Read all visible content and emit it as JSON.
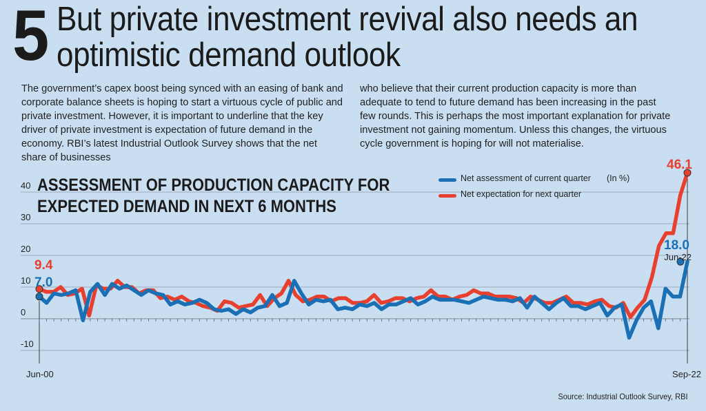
{
  "section_number": "5",
  "headline": {
    "line1": "But private investment revival also needs an",
    "line2": "optimistic demand outlook"
  },
  "body": {
    "column1": "The government’s capex boost being synced with an easing of bank and corporate balance sheets is hoping to start a virtuous cycle of public and private investment. However, it is important to underline that the key driver of private investment is expectation of future demand in the economy. RBI’s latest Industrial Outlook Survey shows that the net share of businesses",
    "column2": "who believe that their current production capacity is more than adequate to tend to future demand has been increasing in the past few rounds. This is perhaps the most important explanation for private investment not gaining momentum. Unless this changes, the virtuous cycle government is hoping for will not materialise."
  },
  "source": "Source: Industrial Outlook Survey, RBI",
  "colors": {
    "current": "#1a6fb5",
    "expectation": "#e8402e",
    "background": "#c9def1",
    "grid": "#8a9aa6"
  },
  "chart_data": {
    "type": "line",
    "title_line1": "ASSESSMENT OF PRODUCTION CAPACITY FOR",
    "title_line2": "EXPECTED DEMAND IN NEXT 6 MONTHS",
    "unit": "(In %)",
    "x_start_label": "Jun-00",
    "x_end_label": "Sep-22",
    "ylim": [
      -10,
      45
    ],
    "yticks": [
      -10,
      0,
      10,
      20,
      30,
      40
    ],
    "series": [
      {
        "name": "Net assessment of current quarter",
        "color": "#1a6fb5",
        "start_value": 7.0,
        "end_value": 18.0,
        "start_label": "7.0",
        "end_label": "18.0",
        "end_date_label": "Jun-22",
        "values": [
          7.0,
          5,
          8,
          7.5,
          8,
          9,
          -0.5,
          8.5,
          11,
          7.5,
          11,
          9.5,
          10.5,
          9,
          7.5,
          9,
          8,
          7.5,
          4.5,
          5.5,
          4.5,
          5,
          6,
          5,
          3,
          2.5,
          3,
          1.5,
          3,
          2,
          3.5,
          4,
          7.5,
          4,
          5,
          12,
          8,
          4.5,
          6,
          5.5,
          6,
          3,
          3.5,
          3,
          4.5,
          4,
          5,
          3,
          4.5,
          4.5,
          5.5,
          6.5,
          4.5,
          5.5,
          7,
          6,
          6,
          6,
          5.5,
          5,
          6,
          7,
          6.5,
          6,
          6,
          5.5,
          6.5,
          3.5,
          7,
          5,
          3,
          5,
          6.5,
          4,
          4,
          3,
          4,
          5,
          1,
          3.5,
          4.5,
          -6,
          -0.5,
          3.5,
          5.5,
          -3,
          9.5,
          7,
          7,
          18.0
        ]
      },
      {
        "name": "Net expectation for next quarter",
        "color": "#e8402e",
        "start_value": 9.4,
        "end_value": 46.1,
        "start_label": "9.4",
        "end_label": "46.1",
        "values": [
          9.4,
          8.5,
          8.5,
          10,
          7.5,
          8,
          9.5,
          1,
          10.5,
          9.5,
          9.5,
          12,
          10,
          10,
          8,
          9,
          9,
          6.5,
          7,
          6,
          7,
          5.5,
          5,
          4,
          3.5,
          2.5,
          5.5,
          5,
          3.5,
          4,
          4.5,
          7.5,
          4,
          6.5,
          8,
          12,
          7.5,
          5.5,
          6,
          7,
          7,
          5.5,
          6.5,
          6.5,
          5,
          5,
          5.5,
          7.5,
          5,
          5.5,
          6.5,
          6.5,
          5.5,
          6.5,
          7,
          9,
          7,
          7,
          6,
          7,
          7.5,
          9,
          8,
          8,
          7,
          7,
          7,
          6.5,
          5,
          7,
          6,
          5,
          5,
          6,
          7,
          5,
          5,
          4.5,
          5.5,
          6,
          4,
          3.5,
          5,
          0.5,
          3.5,
          6,
          13,
          23,
          27,
          27,
          39,
          46.1
        ]
      }
    ]
  }
}
